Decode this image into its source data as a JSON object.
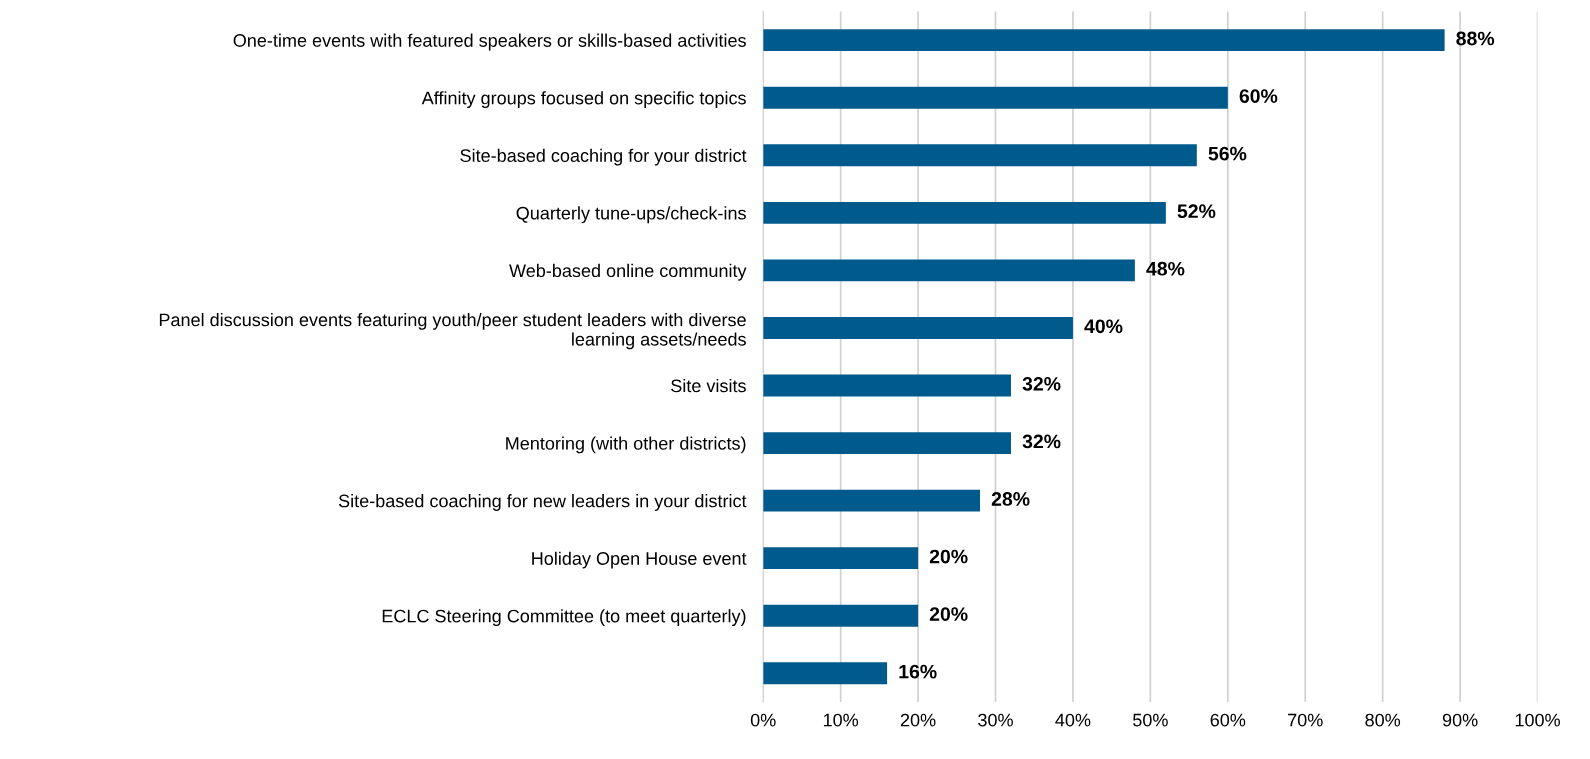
{
  "chart_data": {
    "type": "bar",
    "orientation": "horizontal",
    "categories": [
      "One-time events with featured speakers or skills-based activities",
      "Affinity groups focused on specific topics",
      "Site-based coaching for your district",
      "Quarterly tune-ups/check-ins",
      "Web-based online community",
      "Panel discussion events featuring youth/peer student leaders with diverse\nlearning assets/needs",
      "Site visits",
      "Mentoring (with other districts)",
      "Site-based coaching for new leaders in your district",
      "Holiday Open House event",
      "ECLC Steering Committee (to meet quarterly)",
      null
    ],
    "values": [
      88,
      60,
      56,
      52,
      48,
      40,
      32,
      32,
      28,
      20,
      20,
      16
    ],
    "value_labels": [
      "88%",
      "60%",
      "56%",
      "52%",
      "48%",
      "40%",
      "32%",
      "32%",
      "28%",
      "20%",
      "20%",
      "16%"
    ],
    "color": "#005a8c",
    "xlim": [
      0,
      100
    ],
    "xticks": [
      {
        "value": 0,
        "label": "0%"
      },
      {
        "value": 10,
        "label": "10%"
      },
      {
        "value": 20,
        "label": "20%"
      },
      {
        "value": 30,
        "label": "30%"
      },
      {
        "value": 40,
        "label": "40%"
      },
      {
        "value": 50,
        "label": "50%"
      },
      {
        "value": 60,
        "label": "60%"
      },
      {
        "value": 70,
        "label": "70%"
      },
      {
        "value": 80,
        "label": "80%"
      },
      {
        "value": 90,
        "label": "90%"
      },
      {
        "value": 100,
        "label": "100%"
      }
    ],
    "grid": "x"
  }
}
